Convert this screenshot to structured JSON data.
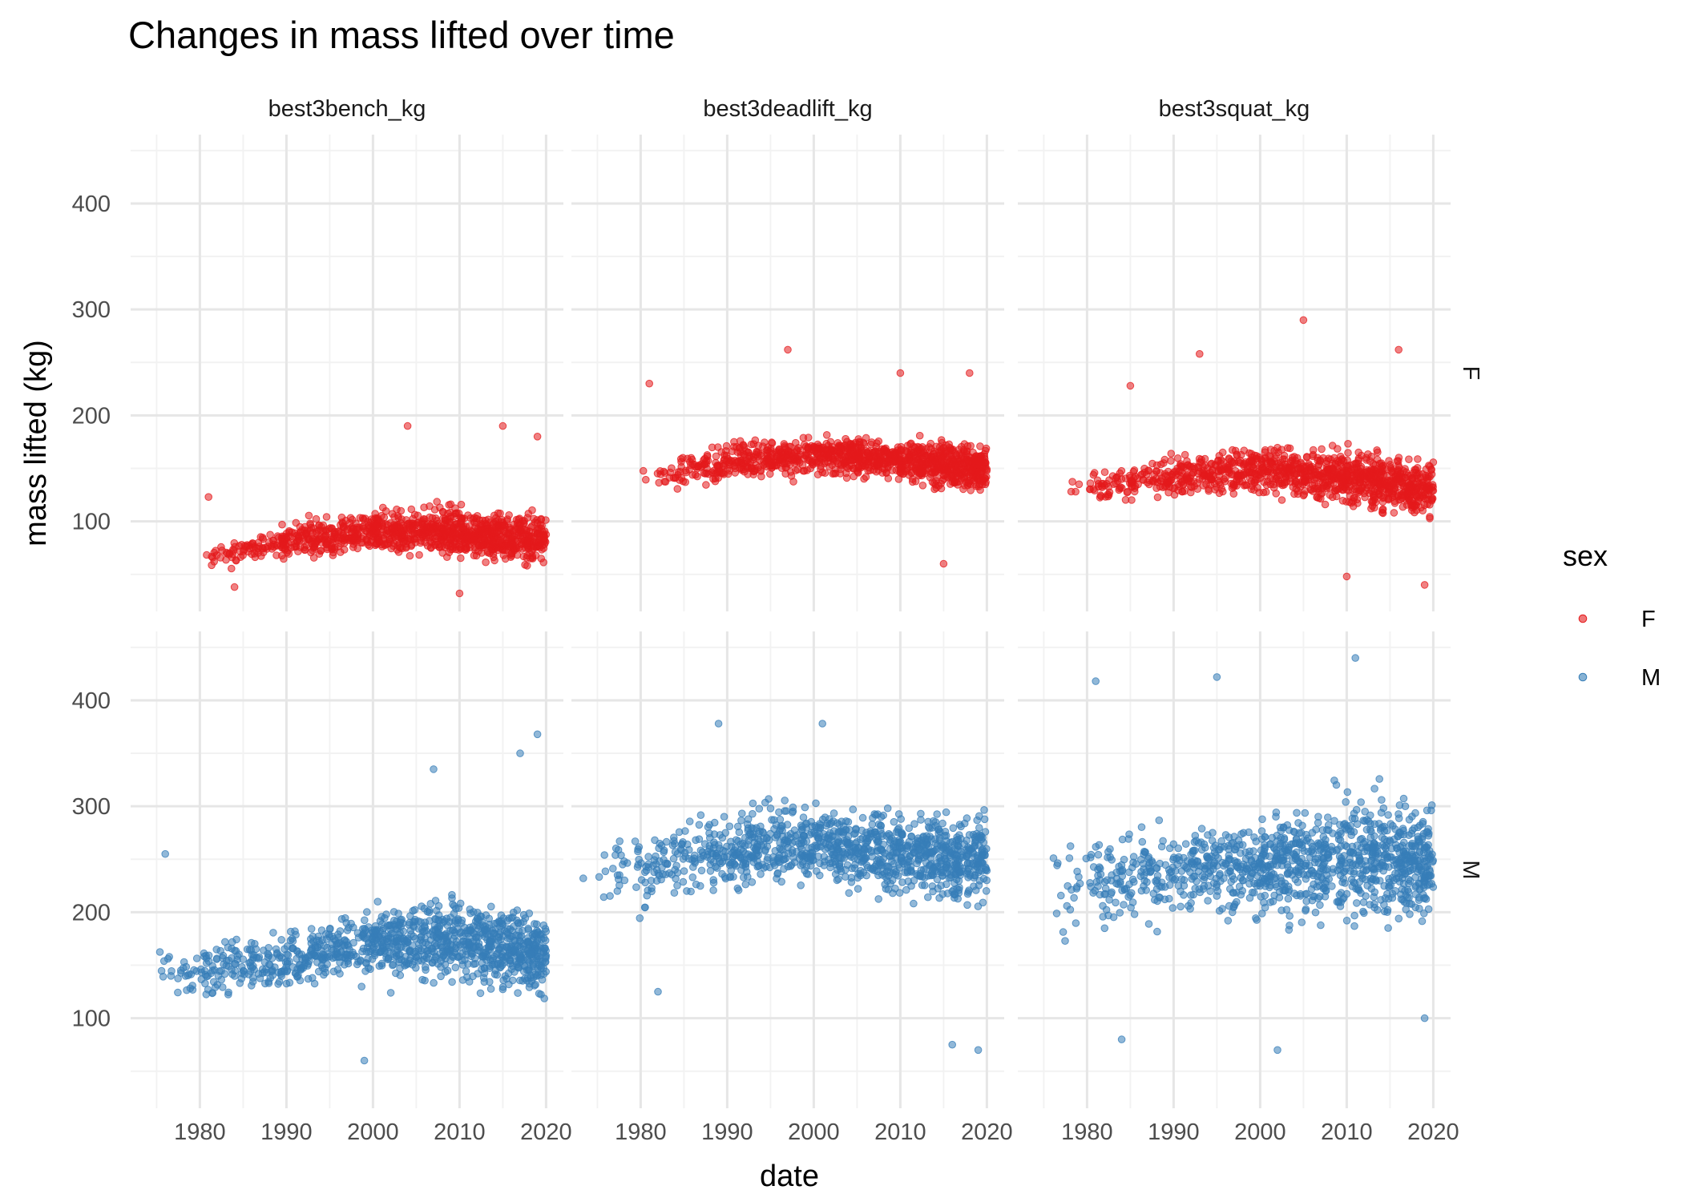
{
  "chart_data": {
    "type": "scatter",
    "title": "Changes in mass lifted over time",
    "xlabel": "date",
    "ylabel": "mass lifted (kg)",
    "x_ticks": [
      1980,
      1990,
      2000,
      2010,
      2020
    ],
    "y_ticks": [
      100,
      200,
      300,
      400
    ],
    "xlim": [
      1972,
      2022
    ],
    "ylim": [
      15,
      465
    ],
    "grid": true,
    "facet_columns": [
      "best3bench_kg",
      "best3deadlift_kg",
      "best3squat_kg"
    ],
    "facet_rows": [
      "F",
      "M"
    ],
    "legend": {
      "title": "sex",
      "position": "right",
      "entries": [
        {
          "label": "F",
          "color": "#e41a1c"
        },
        {
          "label": "M",
          "color": "#377eb8"
        }
      ]
    },
    "panels": [
      {
        "column": "best3bench_kg",
        "row": "F",
        "color": "#e41a1c",
        "x_range": [
          1980,
          2020
        ],
        "typical": [
          [
            1980,
            55,
            75
          ],
          [
            1990,
            60,
            100
          ],
          [
            2000,
            65,
            115
          ],
          [
            2010,
            60,
            120
          ],
          [
            2019,
            55,
            110
          ]
        ],
        "extremes": [
          [
            1981,
            123
          ],
          [
            1984,
            38
          ],
          [
            2004,
            190
          ],
          [
            2010,
            32
          ],
          [
            2015,
            190
          ],
          [
            2019,
            180
          ]
        ]
      },
      {
        "column": "best3deadlift_kg",
        "row": "F",
        "color": "#e41a1c",
        "x_range": [
          1980,
          2020
        ],
        "typical": [
          [
            1980,
            120,
            160
          ],
          [
            1990,
            135,
            175
          ],
          [
            2000,
            140,
            185
          ],
          [
            2010,
            135,
            180
          ],
          [
            2019,
            120,
            180
          ]
        ],
        "extremes": [
          [
            1981,
            230
          ],
          [
            1997,
            262
          ],
          [
            2010,
            240
          ],
          [
            2015,
            60
          ],
          [
            2018,
            240
          ]
        ]
      },
      {
        "column": "best3squat_kg",
        "row": "F",
        "color": "#e41a1c",
        "x_range": [
          1977,
          2020
        ],
        "typical": [
          [
            1978,
            110,
            150
          ],
          [
            1990,
            120,
            165
          ],
          [
            2000,
            120,
            180
          ],
          [
            2010,
            110,
            175
          ],
          [
            2019,
            100,
            160
          ]
        ],
        "extremes": [
          [
            1985,
            228
          ],
          [
            1993,
            258
          ],
          [
            2005,
            290
          ],
          [
            2010,
            48
          ],
          [
            2016,
            262
          ],
          [
            2019,
            40
          ]
        ]
      },
      {
        "column": "best3bench_kg",
        "row": "M",
        "color": "#377eb8",
        "x_range": [
          1974,
          2020
        ],
        "typical": [
          [
            1975,
            110,
            170
          ],
          [
            1990,
            120,
            190
          ],
          [
            2000,
            130,
            210
          ],
          [
            2010,
            130,
            220
          ],
          [
            2019,
            110,
            210
          ]
        ],
        "extremes": [
          [
            1976,
            255
          ],
          [
            1999,
            60
          ],
          [
            2007,
            335
          ],
          [
            2017,
            350
          ],
          [
            2019,
            368
          ]
        ]
      },
      {
        "column": "best3deadlift_kg",
        "row": "M",
        "color": "#377eb8",
        "x_range": [
          1973,
          2020
        ],
        "typical": [
          [
            1975,
            190,
            290
          ],
          [
            1990,
            210,
            300
          ],
          [
            2000,
            220,
            310
          ],
          [
            2010,
            210,
            300
          ],
          [
            2019,
            200,
            300
          ]
        ],
        "extremes": [
          [
            1982,
            125
          ],
          [
            1989,
            378
          ],
          [
            2001,
            378
          ],
          [
            2016,
            75
          ],
          [
            2019,
            70
          ]
        ]
      },
      {
        "column": "best3squat_kg",
        "row": "M",
        "color": "#377eb8",
        "x_range": [
          1974,
          2020
        ],
        "typical": [
          [
            1975,
            170,
            270
          ],
          [
            1990,
            190,
            290
          ],
          [
            2000,
            190,
            300
          ],
          [
            2010,
            180,
            320
          ],
          [
            2019,
            180,
            310
          ]
        ],
        "extremes": [
          [
            1981,
            418
          ],
          [
            1984,
            80
          ],
          [
            1995,
            422
          ],
          [
            2002,
            70
          ],
          [
            2011,
            440
          ],
          [
            2019,
            100
          ]
        ]
      }
    ]
  }
}
